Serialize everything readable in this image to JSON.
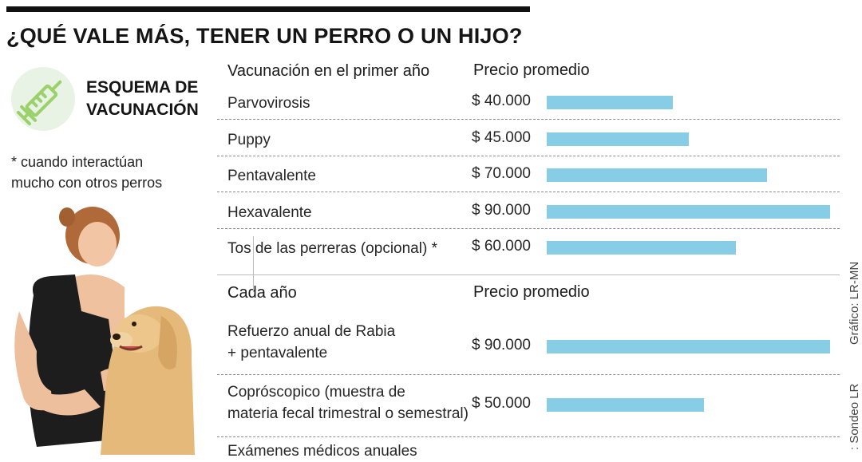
{
  "header": {
    "title": "¿QUÉ VALE MÁS, TENER UN PERRO O UN HIJO?"
  },
  "scheme": {
    "title_line1": "ESQUEMA DE",
    "title_line2": "VACUNACIÓN",
    "icon": "syringe-icon",
    "note_line1": "* cuando interactúan",
    "note_line2": "mucho con otros perros",
    "icon_color": "#9bd16a",
    "icon_bg": "#e8f3e6"
  },
  "credits": {
    "graphic": "Gráfico: LR-MN",
    "source": ": Sondeo LR"
  },
  "chart_data": {
    "type": "bar",
    "orientation": "horizontal",
    "bar_color": "#87cde6",
    "xlim": [
      0,
      90000
    ],
    "sections": [
      {
        "heading": "Vacunación en el primer año",
        "price_heading": "Precio promedio",
        "rows": [
          {
            "label": [
              "Parvovirosis"
            ],
            "price_label": "$ 40.000",
            "value": 40000
          },
          {
            "label": [
              "Puppy"
            ],
            "price_label": "$ 45.000",
            "value": 45000
          },
          {
            "label": [
              "Pentavalente"
            ],
            "price_label": "$ 70.000",
            "value": 70000
          },
          {
            "label": [
              "Hexavalente"
            ],
            "price_label": "$ 90.000",
            "value": 90000
          },
          {
            "label": [
              "Tos de las perreras (opcional) *"
            ],
            "price_label": "$ 60.000",
            "value": 60000
          }
        ]
      },
      {
        "heading": "Cada año",
        "price_heading": "Precio promedio",
        "rows": [
          {
            "label": [
              "Refuerzo anual de Rabia",
              "+ pentavalente"
            ],
            "price_label": "$ 90.000",
            "value": 90000
          },
          {
            "label": [
              "Copróscopico (muestra de",
              "materia fecal trimestral o semestral)"
            ],
            "price_label": "$ 50.000",
            "value": 50000
          },
          {
            "label": [
              "Exámenes médicos anuales"
            ],
            "price_label": "",
            "value": null
          }
        ]
      }
    ]
  }
}
